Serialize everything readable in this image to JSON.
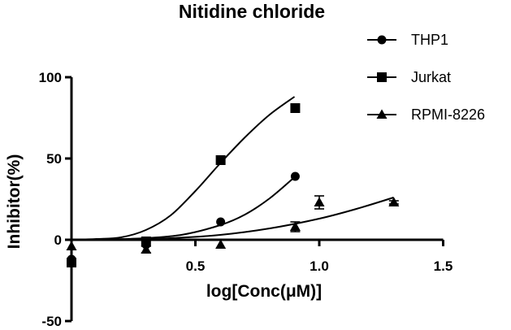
{
  "chart_data": {
    "type": "scatter",
    "title": "Nitidine chloride",
    "xlabel": "log[Conc(μM)]",
    "ylabel": "Inhibitor(%)",
    "xlim": [
      0,
      1.5
    ],
    "ylim": [
      -50,
      100
    ],
    "xticks": [
      0.5,
      1.0,
      1.5
    ],
    "xtick_labels": [
      "0.5",
      "1.0",
      "1.5"
    ],
    "yticks": [
      -50,
      0,
      50,
      100
    ],
    "ytick_labels": [
      "-50",
      "0",
      "50",
      "100"
    ],
    "legend_position": "top-right",
    "grid": false,
    "series": [
      {
        "name": "THP1",
        "marker": "circle",
        "points": [
          {
            "x": 0.0,
            "y": -12,
            "err": 0
          },
          {
            "x": 0.301,
            "y": -3,
            "err": 0
          },
          {
            "x": 0.602,
            "y": 11,
            "err": 0
          },
          {
            "x": 0.903,
            "y": 39,
            "err": 0
          }
        ],
        "fit_curve": [
          [
            0.0,
            0.0
          ],
          [
            0.15,
            0.3
          ],
          [
            0.3,
            1.0
          ],
          [
            0.45,
            3.2
          ],
          [
            0.6,
            9.0
          ],
          [
            0.7,
            15.5
          ],
          [
            0.8,
            25.5
          ],
          [
            0.9,
            38.5
          ]
        ]
      },
      {
        "name": "Jurkat",
        "marker": "square",
        "points": [
          {
            "x": 0.0,
            "y": -14,
            "err": 0
          },
          {
            "x": 0.301,
            "y": -1,
            "err": 0
          },
          {
            "x": 0.602,
            "y": 49,
            "err": 0
          },
          {
            "x": 0.903,
            "y": 81,
            "err": 0
          }
        ],
        "fit_curve": [
          [
            0.0,
            0.0
          ],
          [
            0.1,
            0.5
          ],
          [
            0.2,
            1.5
          ],
          [
            0.3,
            6.0
          ],
          [
            0.4,
            15.0
          ],
          [
            0.5,
            30.0
          ],
          [
            0.6,
            47.0
          ],
          [
            0.7,
            63.0
          ],
          [
            0.8,
            77.0
          ],
          [
            0.9,
            88.0
          ]
        ]
      },
      {
        "name": "RPMI-8226",
        "marker": "triangle",
        "points": [
          {
            "x": 0.0,
            "y": -4,
            "err": 0
          },
          {
            "x": 0.301,
            "y": -6,
            "err": 2
          },
          {
            "x": 0.602,
            "y": -3,
            "err": 0
          },
          {
            "x": 0.903,
            "y": 8,
            "err": 3
          },
          {
            "x": 1.0,
            "y": 23,
            "err": 4
          },
          {
            "x": 1.301,
            "y": 23,
            "err": 1
          }
        ],
        "fit_curve": [
          [
            0.0,
            0.0
          ],
          [
            0.2,
            0.2
          ],
          [
            0.4,
            1.0
          ],
          [
            0.6,
            3.0
          ],
          [
            0.8,
            7.0
          ],
          [
            1.0,
            13.0
          ],
          [
            1.15,
            19.0
          ],
          [
            1.3,
            26.0
          ]
        ]
      }
    ]
  }
}
